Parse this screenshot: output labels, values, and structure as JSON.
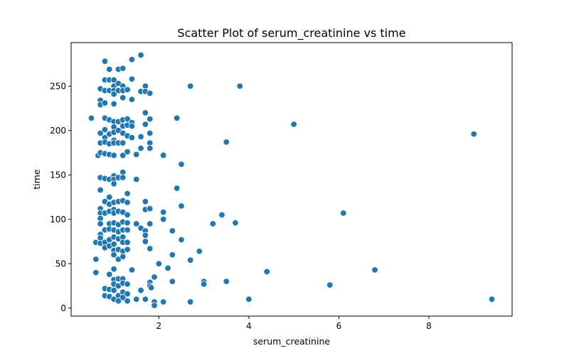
{
  "chart_data": {
    "type": "scatter",
    "title": "Scatter Plot of serum_creatinine vs time",
    "xlabel": "serum_creatinine",
    "ylabel": "time",
    "xlim": [
      0.05,
      9.85
    ],
    "ylim": [
      -9,
      299
    ],
    "xticks": [
      2,
      4,
      6,
      8
    ],
    "yticks": [
      0,
      50,
      100,
      150,
      200,
      250
    ],
    "point_color": "#1f77b4",
    "grid": false,
    "legend": "none",
    "points": [
      [
        0.5,
        214
      ],
      [
        0.6,
        74
      ],
      [
        0.6,
        55
      ],
      [
        0.6,
        40
      ],
      [
        0.65,
        172
      ],
      [
        0.7,
        247
      ],
      [
        0.7,
        234
      ],
      [
        0.7,
        229
      ],
      [
        0.7,
        197
      ],
      [
        0.7,
        186
      ],
      [
        0.7,
        175
      ],
      [
        0.7,
        147
      ],
      [
        0.7,
        133
      ],
      [
        0.7,
        112
      ],
      [
        0.7,
        107
      ],
      [
        0.7,
        101
      ],
      [
        0.7,
        95
      ],
      [
        0.7,
        83
      ],
      [
        0.7,
        79
      ],
      [
        0.7,
        73
      ],
      [
        0.8,
        278
      ],
      [
        0.8,
        257
      ],
      [
        0.8,
        245
      ],
      [
        0.8,
        231
      ],
      [
        0.8,
        214
      ],
      [
        0.8,
        201
      ],
      [
        0.8,
        192
      ],
      [
        0.8,
        187
      ],
      [
        0.8,
        174
      ],
      [
        0.8,
        146
      ],
      [
        0.8,
        120
      ],
      [
        0.8,
        107
      ],
      [
        0.8,
        88
      ],
      [
        0.8,
        74
      ],
      [
        0.8,
        68
      ],
      [
        0.8,
        22
      ],
      [
        0.8,
        14
      ],
      [
        0.9,
        269
      ],
      [
        0.9,
        257
      ],
      [
        0.9,
        245
      ],
      [
        0.9,
        212
      ],
      [
        0.9,
        196
      ],
      [
        0.9,
        185
      ],
      [
        0.9,
        173
      ],
      [
        0.9,
        145
      ],
      [
        0.9,
        125
      ],
      [
        0.9,
        117
      ],
      [
        0.9,
        109
      ],
      [
        0.9,
        95
      ],
      [
        0.9,
        89
      ],
      [
        0.9,
        77
      ],
      [
        0.9,
        70
      ],
      [
        0.9,
        38
      ],
      [
        0.9,
        21
      ],
      [
        0.9,
        13
      ],
      [
        1.0,
        257
      ],
      [
        1.0,
        250
      ],
      [
        1.0,
        245
      ],
      [
        1.0,
        241
      ],
      [
        1.0,
        230
      ],
      [
        1.0,
        210
      ],
      [
        1.0,
        204
      ],
      [
        1.0,
        198
      ],
      [
        1.0,
        189
      ],
      [
        1.0,
        186
      ],
      [
        1.0,
        172
      ],
      [
        1.0,
        149
      ],
      [
        1.0,
        145
      ],
      [
        1.0,
        140
      ],
      [
        1.0,
        119
      ],
      [
        1.0,
        111
      ],
      [
        1.0,
        107
      ],
      [
        1.0,
        96
      ],
      [
        1.0,
        88
      ],
      [
        1.0,
        80
      ],
      [
        1.0,
        72
      ],
      [
        1.0,
        65
      ],
      [
        1.0,
        60
      ],
      [
        1.0,
        44
      ],
      [
        1.0,
        32
      ],
      [
        1.0,
        27
      ],
      [
        1.0,
        20
      ],
      [
        1.0,
        10
      ],
      [
        1.1,
        269
      ],
      [
        1.1,
        253
      ],
      [
        1.1,
        245
      ],
      [
        1.1,
        210
      ],
      [
        1.1,
        200
      ],
      [
        1.1,
        186
      ],
      [
        1.1,
        147
      ],
      [
        1.1,
        120
      ],
      [
        1.1,
        109
      ],
      [
        1.1,
        94
      ],
      [
        1.1,
        86
      ],
      [
        1.1,
        78
      ],
      [
        1.1,
        66
      ],
      [
        1.1,
        55
      ],
      [
        1.1,
        33
      ],
      [
        1.1,
        25
      ],
      [
        1.1,
        14
      ],
      [
        1.1,
        8
      ],
      [
        1.2,
        270
      ],
      [
        1.2,
        250
      ],
      [
        1.2,
        245
      ],
      [
        1.2,
        237
      ],
      [
        1.2,
        212
      ],
      [
        1.2,
        205
      ],
      [
        1.2,
        197
      ],
      [
        1.2,
        186
      ],
      [
        1.2,
        172
      ],
      [
        1.2,
        153
      ],
      [
        1.2,
        147
      ],
      [
        1.2,
        121
      ],
      [
        1.2,
        108
      ],
      [
        1.2,
        97
      ],
      [
        1.2,
        88
      ],
      [
        1.2,
        80
      ],
      [
        1.2,
        74
      ],
      [
        1.2,
        64
      ],
      [
        1.2,
        58
      ],
      [
        1.2,
        33
      ],
      [
        1.2,
        28
      ],
      [
        1.2,
        18
      ],
      [
        1.2,
        12
      ],
      [
        1.3,
        246
      ],
      [
        1.3,
        213
      ],
      [
        1.3,
        206
      ],
      [
        1.3,
        194
      ],
      [
        1.3,
        176
      ],
      [
        1.3,
        129
      ],
      [
        1.3,
        119
      ],
      [
        1.3,
        105
      ],
      [
        1.3,
        96
      ],
      [
        1.3,
        88
      ],
      [
        1.3,
        74
      ],
      [
        1.3,
        66
      ],
      [
        1.3,
        27
      ],
      [
        1.3,
        16
      ],
      [
        1.3,
        8
      ],
      [
        1.4,
        280
      ],
      [
        1.4,
        258
      ],
      [
        1.4,
        235
      ],
      [
        1.4,
        209
      ],
      [
        1.4,
        205
      ],
      [
        1.4,
        192
      ],
      [
        1.4,
        43
      ],
      [
        1.5,
        173
      ],
      [
        1.5,
        145
      ],
      [
        1.5,
        95
      ],
      [
        1.5,
        10
      ],
      [
        1.6,
        285
      ],
      [
        1.6,
        244
      ],
      [
        1.6,
        193
      ],
      [
        1.6,
        180
      ],
      [
        1.6,
        90
      ],
      [
        1.6,
        20
      ],
      [
        1.7,
        250
      ],
      [
        1.7,
        244
      ],
      [
        1.7,
        220
      ],
      [
        1.7,
        207
      ],
      [
        1.7,
        120
      ],
      [
        1.7,
        111
      ],
      [
        1.7,
        87
      ],
      [
        1.7,
        82
      ],
      [
        1.7,
        75
      ],
      [
        1.7,
        10
      ],
      [
        1.8,
        242
      ],
      [
        1.8,
        213
      ],
      [
        1.8,
        197
      ],
      [
        1.8,
        186
      ],
      [
        1.8,
        180
      ],
      [
        1.8,
        112
      ],
      [
        1.8,
        95
      ],
      [
        1.8,
        67
      ],
      [
        1.8,
        29
      ],
      [
        1.8,
        25
      ],
      [
        1.83,
        23
      ],
      [
        1.9,
        35
      ],
      [
        1.9,
        7
      ],
      [
        1.9,
        3
      ],
      [
        2.0,
        50
      ],
      [
        2.1,
        173
      ],
      [
        2.1,
        172
      ],
      [
        2.1,
        108
      ],
      [
        2.1,
        100
      ],
      [
        2.1,
        7
      ],
      [
        2.2,
        45
      ],
      [
        2.3,
        87
      ],
      [
        2.3,
        60
      ],
      [
        2.3,
        30
      ],
      [
        2.4,
        214
      ],
      [
        2.4,
        135
      ],
      [
        2.5,
        162
      ],
      [
        2.5,
        115
      ],
      [
        2.5,
        77
      ],
      [
        2.7,
        250
      ],
      [
        2.7,
        54
      ],
      [
        2.7,
        7
      ],
      [
        2.9,
        64
      ],
      [
        3.0,
        30
      ],
      [
        3.0,
        27
      ],
      [
        3.2,
        95
      ],
      [
        3.4,
        105
      ],
      [
        3.5,
        187
      ],
      [
        3.5,
        30
      ],
      [
        3.7,
        96
      ],
      [
        3.8,
        250
      ],
      [
        4.0,
        10
      ],
      [
        4.4,
        41
      ],
      [
        5.0,
        207
      ],
      [
        5.8,
        26
      ],
      [
        6.1,
        107
      ],
      [
        6.8,
        43
      ],
      [
        9.0,
        196
      ],
      [
        9.4,
        10
      ]
    ]
  }
}
